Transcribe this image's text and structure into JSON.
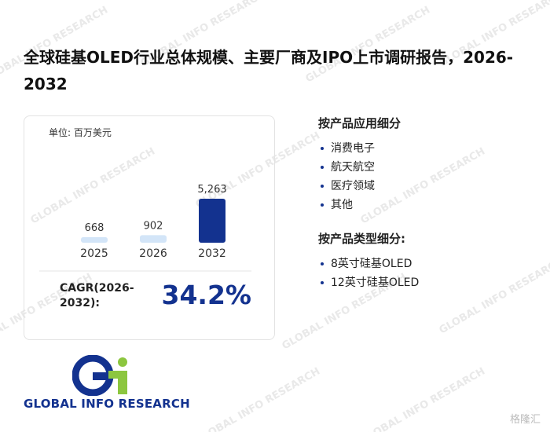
{
  "title": "全球硅基OLED行业总体规模、主要厂商及IPO上市调研报告，2026-2032",
  "chart_data": {
    "type": "bar",
    "unit": "单位: 百万美元",
    "categories": [
      "2025",
      "2026",
      "2032"
    ],
    "values": [
      668,
      902,
      5263
    ],
    "value_labels": [
      "668",
      "902",
      "5,263"
    ],
    "colors": [
      "#d3e5f8",
      "#d3e5f8",
      "#13328f"
    ]
  },
  "cagr": {
    "label": "CAGR(2026-2032):",
    "value": "34.2%"
  },
  "segments": [
    {
      "heading": "按产品应用细分",
      "items": [
        "消费电子",
        "航天航空",
        "医疗领域",
        "其他"
      ]
    },
    {
      "heading": "按产品类型细分:",
      "items": [
        "8英寸硅基OLED",
        "12英寸硅基OLED"
      ]
    }
  ],
  "logo": {
    "mark": "Gi",
    "name": "GLOBAL INFO RESEARCH"
  },
  "watermark": {
    "text": "GLOBAL INFO RESEARCH",
    "corner": "格隆汇"
  }
}
